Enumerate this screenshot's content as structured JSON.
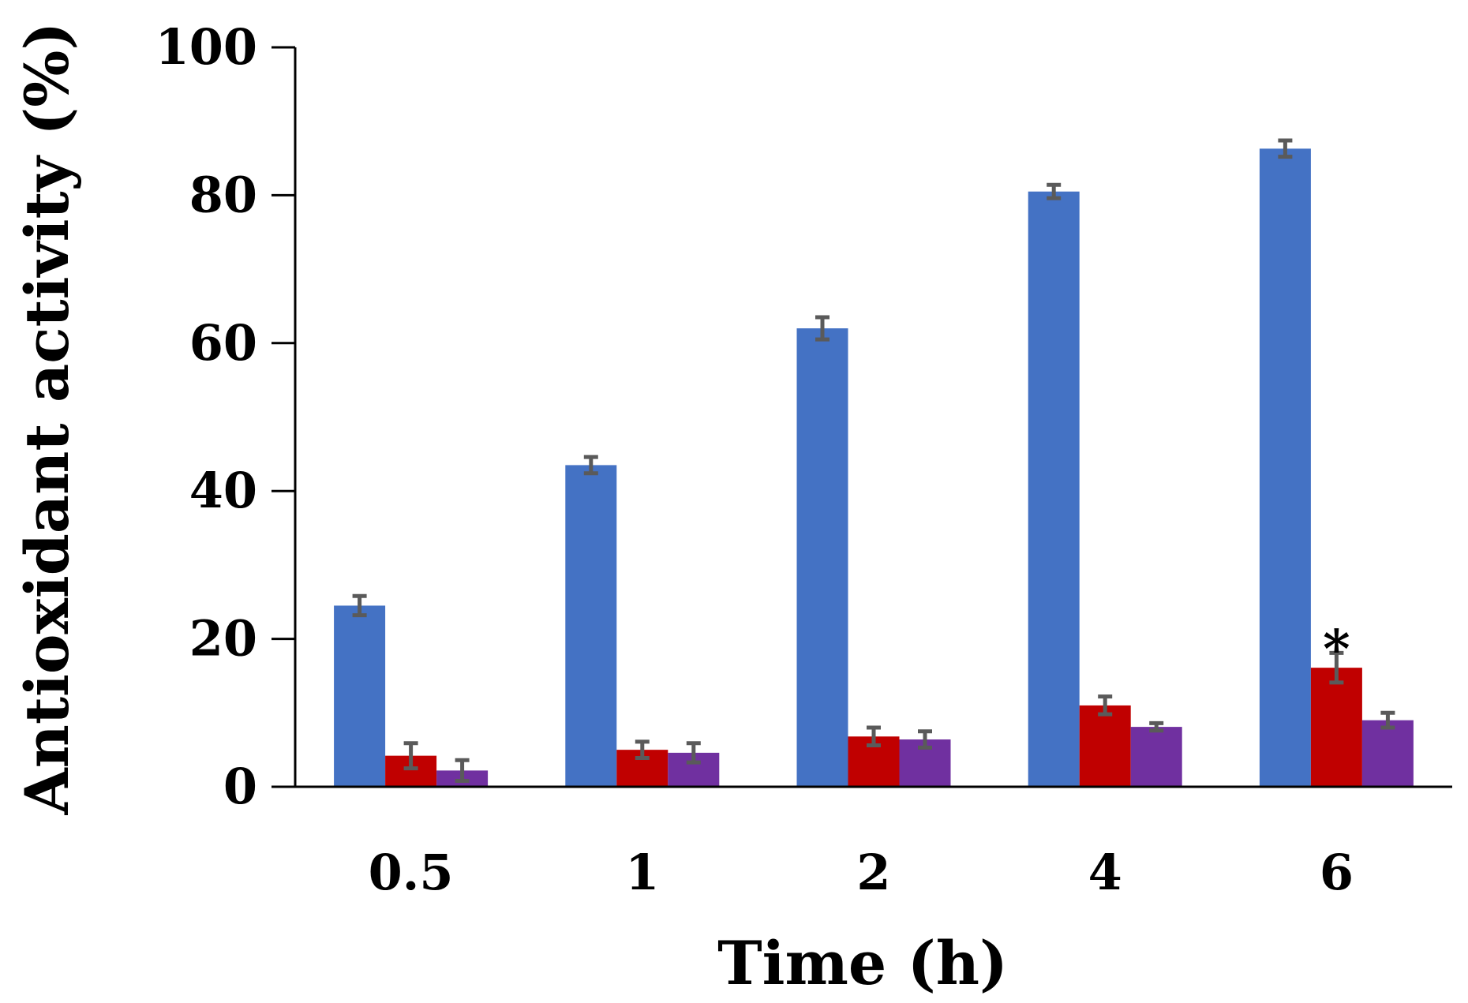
{
  "chart_data": {
    "type": "bar",
    "title": "",
    "xlabel": "Time (h)",
    "ylabel": "Antioxidant activity (%)",
    "ylim": [
      0,
      100
    ],
    "yticks": [
      0,
      20,
      40,
      60,
      80,
      100
    ],
    "grid": false,
    "legend": "none",
    "categories": [
      "0.5",
      "1",
      "2",
      "4",
      "6"
    ],
    "series": [
      {
        "name": "series 1",
        "color": "#4472C4",
        "values": [
          24.5,
          43.5,
          62.0,
          80.5,
          86.3
        ],
        "errors": [
          1.3,
          1.1,
          1.5,
          0.9,
          1.1
        ]
      },
      {
        "name": "series 2",
        "color": "#C00000",
        "values": [
          4.2,
          5.0,
          6.8,
          11.0,
          16.1
        ],
        "errors": [
          1.7,
          1.1,
          1.2,
          1.2,
          2.0
        ]
      },
      {
        "name": "series 3",
        "color": "#7030A0",
        "values": [
          2.2,
          4.6,
          6.4,
          8.1,
          9.0
        ],
        "errors": [
          1.4,
          1.3,
          1.1,
          0.5,
          1.0
        ]
      }
    ],
    "annotations": [
      {
        "text": "*",
        "category": "6",
        "series_index": 1
      }
    ]
  }
}
